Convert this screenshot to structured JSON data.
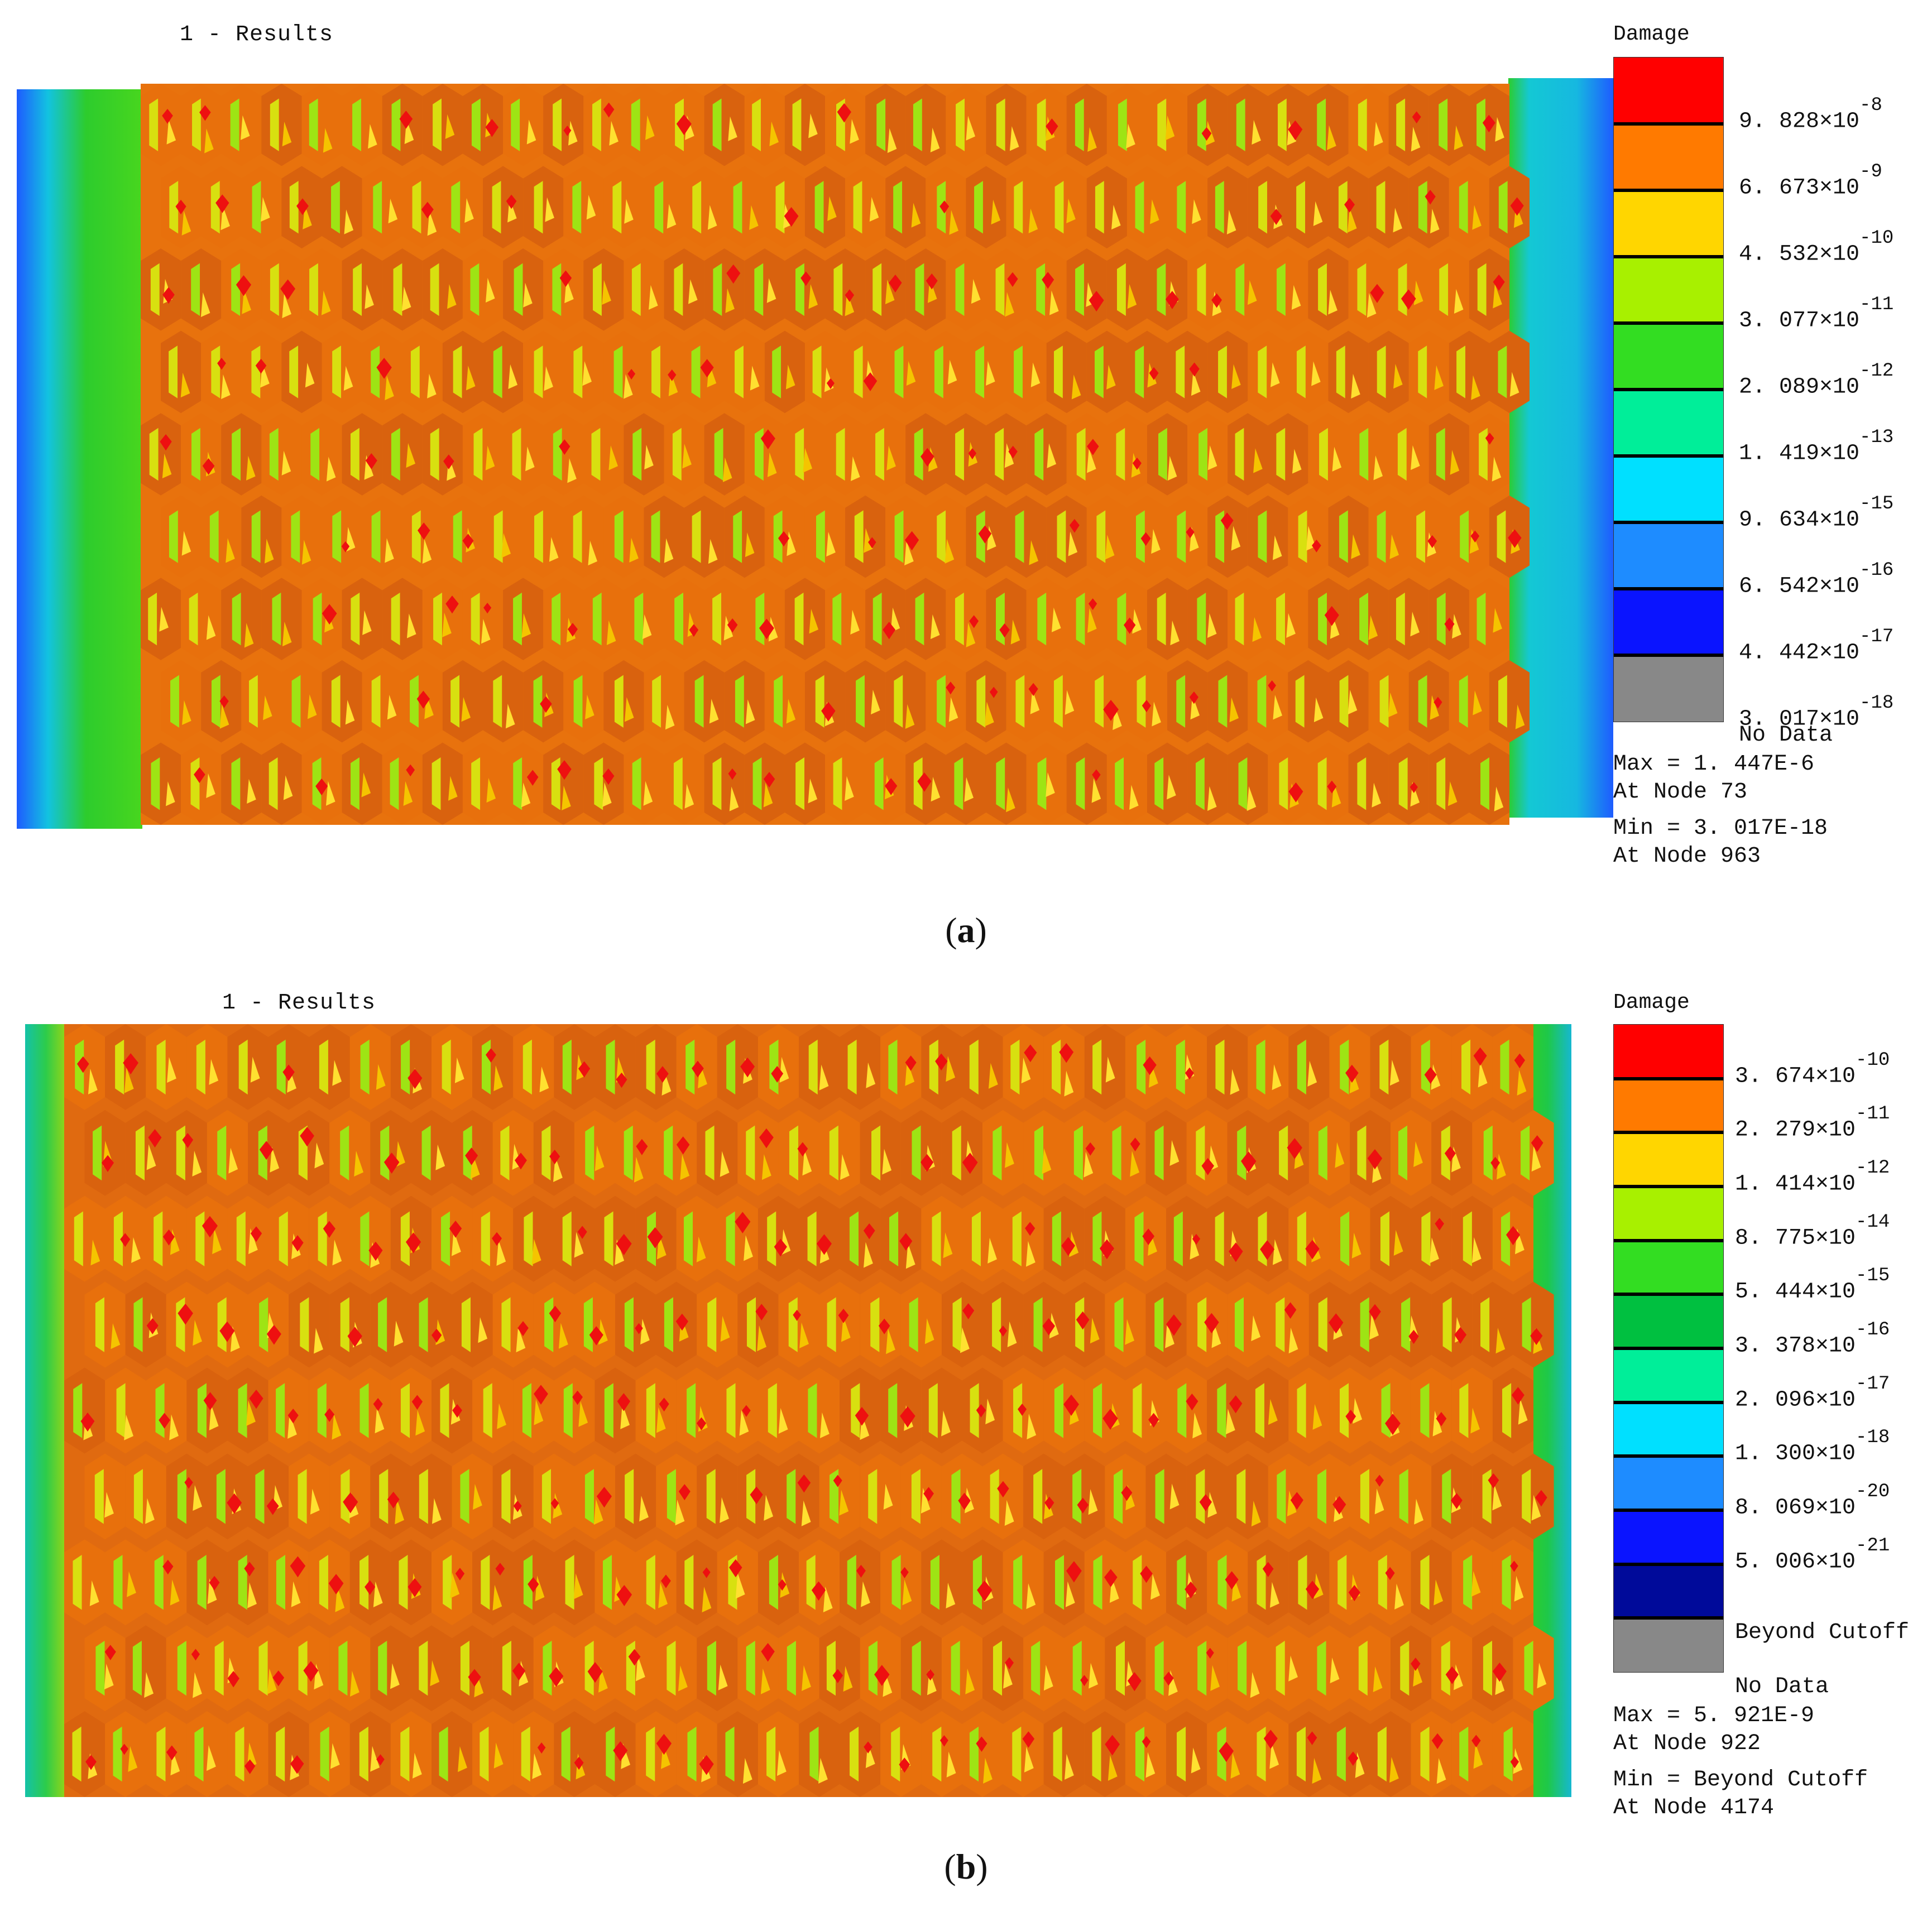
{
  "figure": {
    "panels": [
      {
        "id": "a",
        "caption_label": "a",
        "results_title": "1 - Results",
        "legend": {
          "title": "Damage",
          "bands": [
            "#ff0000",
            "#ff7a00",
            "#ffd600",
            "#a8f000",
            "#33dd22",
            "#00ee99",
            "#00e0ff",
            "#1e8cff",
            "#0a14ff",
            "#888888"
          ],
          "ticks": [
            {
              "mantissa": "9. 828",
              "times": "×10",
              "exponent": "-8"
            },
            {
              "mantissa": "6. 673",
              "times": "×10",
              "exponent": "-9"
            },
            {
              "mantissa": "4. 532",
              "times": "×10",
              "exponent": "-10"
            },
            {
              "mantissa": "3. 077",
              "times": "×10",
              "exponent": "-11"
            },
            {
              "mantissa": "2. 089",
              "times": "×10",
              "exponent": "-12"
            },
            {
              "mantissa": "1. 419",
              "times": "×10",
              "exponent": "-13"
            },
            {
              "mantissa": "9. 634",
              "times": "×10",
              "exponent": "-15"
            },
            {
              "mantissa": "6. 542",
              "times": "×10",
              "exponent": "-16"
            },
            {
              "mantissa": "4. 442",
              "times": "×10",
              "exponent": "-17"
            },
            {
              "mantissa": "3. 017",
              "times": "×10",
              "exponent": "-18"
            }
          ],
          "bottom_label": "No Data",
          "max_line": "Max = 1. 447E-6",
          "max_node": "At Node 73",
          "min_line": "Min = 3. 017E-18",
          "min_node": "At Node 963"
        }
      },
      {
        "id": "b",
        "caption_label": "b",
        "results_title": "1 - Results",
        "legend": {
          "title": "Damage",
          "bands": [
            "#ff0000",
            "#ff7a00",
            "#ffd600",
            "#a8f000",
            "#33dd22",
            "#00c040",
            "#00ee99",
            "#00e0ff",
            "#1e8cff",
            "#0a14ff",
            "#000a9a",
            "#888888"
          ],
          "ticks": [
            {
              "mantissa": "3. 674",
              "times": "×10",
              "exponent": "-10"
            },
            {
              "mantissa": "2. 279",
              "times": "×10",
              "exponent": "-11"
            },
            {
              "mantissa": "1. 414",
              "times": "×10",
              "exponent": "-12"
            },
            {
              "mantissa": "8. 775",
              "times": "×10",
              "exponent": "-14"
            },
            {
              "mantissa": "5. 444",
              "times": "×10",
              "exponent": "-15"
            },
            {
              "mantissa": "3. 378",
              "times": "×10",
              "exponent": "-16"
            },
            {
              "mantissa": "2. 096",
              "times": "×10",
              "exponent": "-17"
            },
            {
              "mantissa": "1. 300",
              "times": "×10",
              "exponent": "-18"
            },
            {
              "mantissa": "8. 069",
              "times": "×10",
              "exponent": "-20"
            },
            {
              "mantissa": "5. 006",
              "times": "×10",
              "exponent": "-21"
            }
          ],
          "extra_label": "Beyond Cutoff",
          "bottom_label": "No Data",
          "max_line": "Max = 5. 921E-9",
          "max_node": "At Node 922",
          "min_line": "Min = Beyond Cutoff",
          "min_node": "At Node 4174"
        }
      }
    ]
  }
}
